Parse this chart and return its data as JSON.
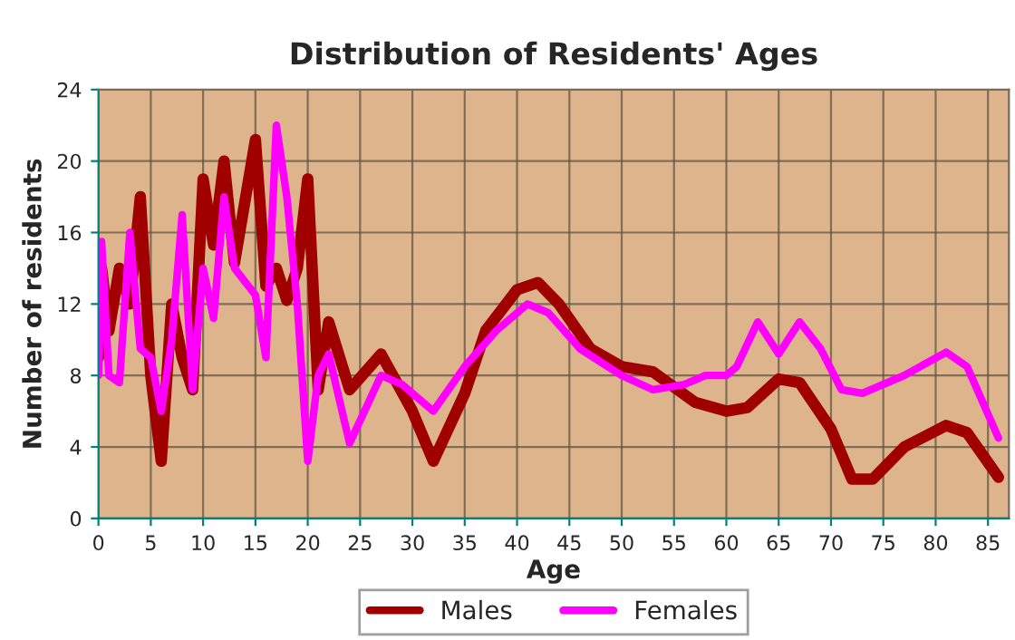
{
  "chart_data": {
    "type": "line",
    "title": "Distribution of Residents' Ages",
    "xlabel": "Age",
    "ylabel": "Number of residents",
    "xlim": [
      0,
      87
    ],
    "xticks": [
      0,
      5,
      10,
      15,
      20,
      25,
      30,
      35,
      40,
      45,
      50,
      55,
      60,
      65,
      70,
      75,
      80,
      85
    ],
    "ylim": [
      0,
      24
    ],
    "yticks": [
      0,
      4,
      8,
      12,
      16,
      20,
      24
    ],
    "grid": true,
    "legend": "bottom",
    "marker": "none",
    "line_style": "solid",
    "series": [
      {
        "name": "Males",
        "color": "#a00000",
        "x": [
          0,
          0.3,
          1,
          2,
          3,
          4,
          5,
          6,
          7,
          8,
          9,
          10,
          11,
          12,
          13,
          15,
          16,
          17,
          18,
          19,
          20,
          21,
          22,
          24,
          27,
          30,
          32,
          35,
          37,
          40,
          42,
          44,
          47,
          50,
          53,
          57,
          60,
          62,
          65,
          67,
          70,
          72,
          74,
          77,
          81,
          83,
          86
        ],
        "values": [
          9,
          14,
          10.5,
          14,
          12,
          18,
          8,
          3.2,
          12,
          9,
          7.2,
          19,
          15.3,
          20,
          14.3,
          21.2,
          13,
          14,
          12.2,
          14,
          19,
          7.2,
          11,
          7.2,
          9.2,
          6,
          3.2,
          7,
          10.5,
          12.8,
          13.2,
          12,
          9.5,
          8.5,
          8.2,
          6.5,
          6,
          6.2,
          7.8,
          7.6,
          5,
          2.2,
          2.2,
          4,
          5.2,
          4.8,
          2.3
        ]
      },
      {
        "name": "Females",
        "color": "#ff00ff",
        "x": [
          0,
          0.3,
          1,
          2,
          3,
          4,
          5,
          6,
          7,
          8,
          9,
          10,
          11,
          12,
          13,
          15,
          16,
          17,
          18,
          19,
          20,
          21,
          22,
          24,
          27,
          29,
          32,
          35,
          38,
          41,
          43,
          46,
          50,
          53,
          56,
          58,
          60,
          61,
          63,
          65,
          67,
          69,
          71,
          73,
          77,
          81,
          83,
          86
        ],
        "values": [
          8,
          15.5,
          8,
          7.6,
          16,
          9.5,
          9,
          6,
          10,
          17,
          7.2,
          14,
          11.2,
          18,
          14,
          12.5,
          9,
          22,
          18,
          12,
          3.2,
          8,
          9.2,
          4.2,
          8,
          7.5,
          6,
          8.5,
          10.5,
          12,
          11.5,
          9.5,
          8,
          7.2,
          7.5,
          8,
          8,
          8.5,
          11,
          9.2,
          11,
          9.5,
          7.2,
          7,
          8,
          9.3,
          8.5,
          4.5
        ]
      }
    ]
  }
}
